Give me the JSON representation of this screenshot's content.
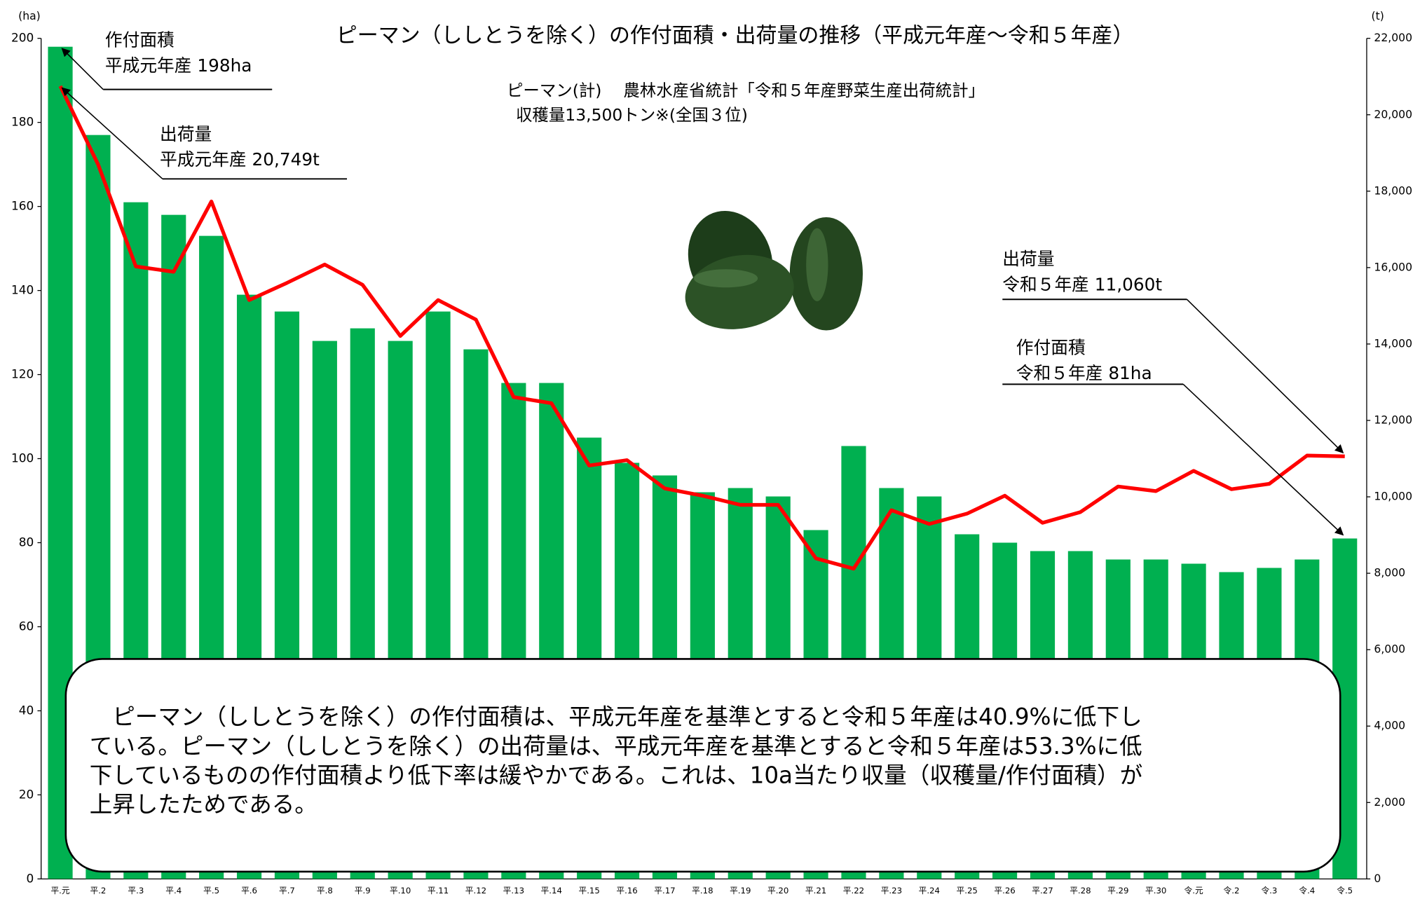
{
  "chart_data": {
    "type": "bar_line",
    "title": "ピーマン（ししとうを除く）の作付面積・出荷量の推移（平成元年産～令和５年産）",
    "notes": [
      "ピーマン(計)　 農林水産省統計「令和５年産野菜生産出荷統計」",
      "収穫量13,500トン※(全国３位)"
    ],
    "y_unit": "(ha)",
    "y2_unit": "(t)",
    "categories": [
      "平.元",
      "平.2",
      "平.3",
      "平.4",
      "平.5",
      "平.6",
      "平.7",
      "平.8",
      "平.9",
      "平.10",
      "平.11",
      "平.12",
      "平.13",
      "平.14",
      "平.15",
      "平.16",
      "平.17",
      "平.18",
      "平.19",
      "平.20",
      "平.21",
      "平.22",
      "平.23",
      "平.24",
      "平.25",
      "平.26",
      "平.27",
      "平.28",
      "平.29",
      "平.30",
      "令.元",
      "令.2",
      "令.3",
      "令.4",
      "令.5"
    ],
    "series": [
      {
        "name": "作付面積",
        "color": "#00b050",
        "type": "bar",
        "values": [
          198,
          177,
          161,
          158,
          153,
          139,
          135,
          128,
          131,
          128,
          135,
          126,
          118,
          118,
          105,
          99,
          96,
          92,
          93,
          91,
          83,
          103,
          93,
          91,
          82,
          80,
          78,
          78,
          76,
          76,
          75,
          73,
          74,
          76,
          81
        ]
      },
      {
        "name": "出荷量",
        "color": "#ff0000",
        "type": "line",
        "axis": "y2",
        "values": [
          20749,
          18700,
          16030,
          15890,
          17730,
          15150,
          15600,
          16080,
          15550,
          14210,
          15150,
          14640,
          12610,
          12450,
          10820,
          10960,
          10220,
          10030,
          9790,
          9790,
          8390,
          8120,
          9650,
          9290,
          9560,
          10030,
          9320,
          9600,
          10270,
          10150,
          10680,
          10200,
          10340,
          11080,
          11060
        ]
      }
    ],
    "ylim": [
      0,
      200
    ],
    "yticks": [
      0,
      20,
      40,
      60,
      80,
      100,
      120,
      140,
      160,
      180,
      200
    ],
    "y2lim": [
      0,
      22000
    ],
    "y2ticks": [
      0,
      {
        "value": 2000,
        "label": "2,000"
      },
      {
        "value": 4000,
        "label": "4,000"
      },
      {
        "value": 6000,
        "label": "6,000"
      },
      {
        "value": 8000,
        "label": "8,000"
      },
      {
        "value": 10000,
        "label": "10,000"
      },
      {
        "value": 12000,
        "label": "12,000"
      },
      {
        "value": 14000,
        "label": "14,000"
      },
      {
        "value": 16000,
        "label": "16,000"
      },
      {
        "value": 18000,
        "label": "18,000"
      },
      {
        "value": 20000,
        "label": "20,000"
      },
      {
        "value": 22000,
        "label": "22,000"
      }
    ],
    "annotations": [
      {
        "series": 0,
        "label": "平成元年産 198ha"
      },
      {
        "series": 1,
        "label": "平成元年産 20,749t"
      },
      {
        "series": 1,
        "label": "令和５年産 11,060t"
      },
      {
        "series": 0,
        "label": "令和５年産 81ha"
      }
    ],
    "summary": [
      "　ピーマン（ししとうを除く）の作付面積は、平成元年産を基準とすると令和５年産は40.9%に低下し",
      "ている。ピーマン（ししとうを除く）の出荷量は、平成元年産を基準とすると令和５年産は53.3%に低",
      "下しているものの作付面積より低下率は緩やかである。これは、10a当たり収量（収穫量/作付面積）が",
      "上昇したためである。"
    ]
  }
}
